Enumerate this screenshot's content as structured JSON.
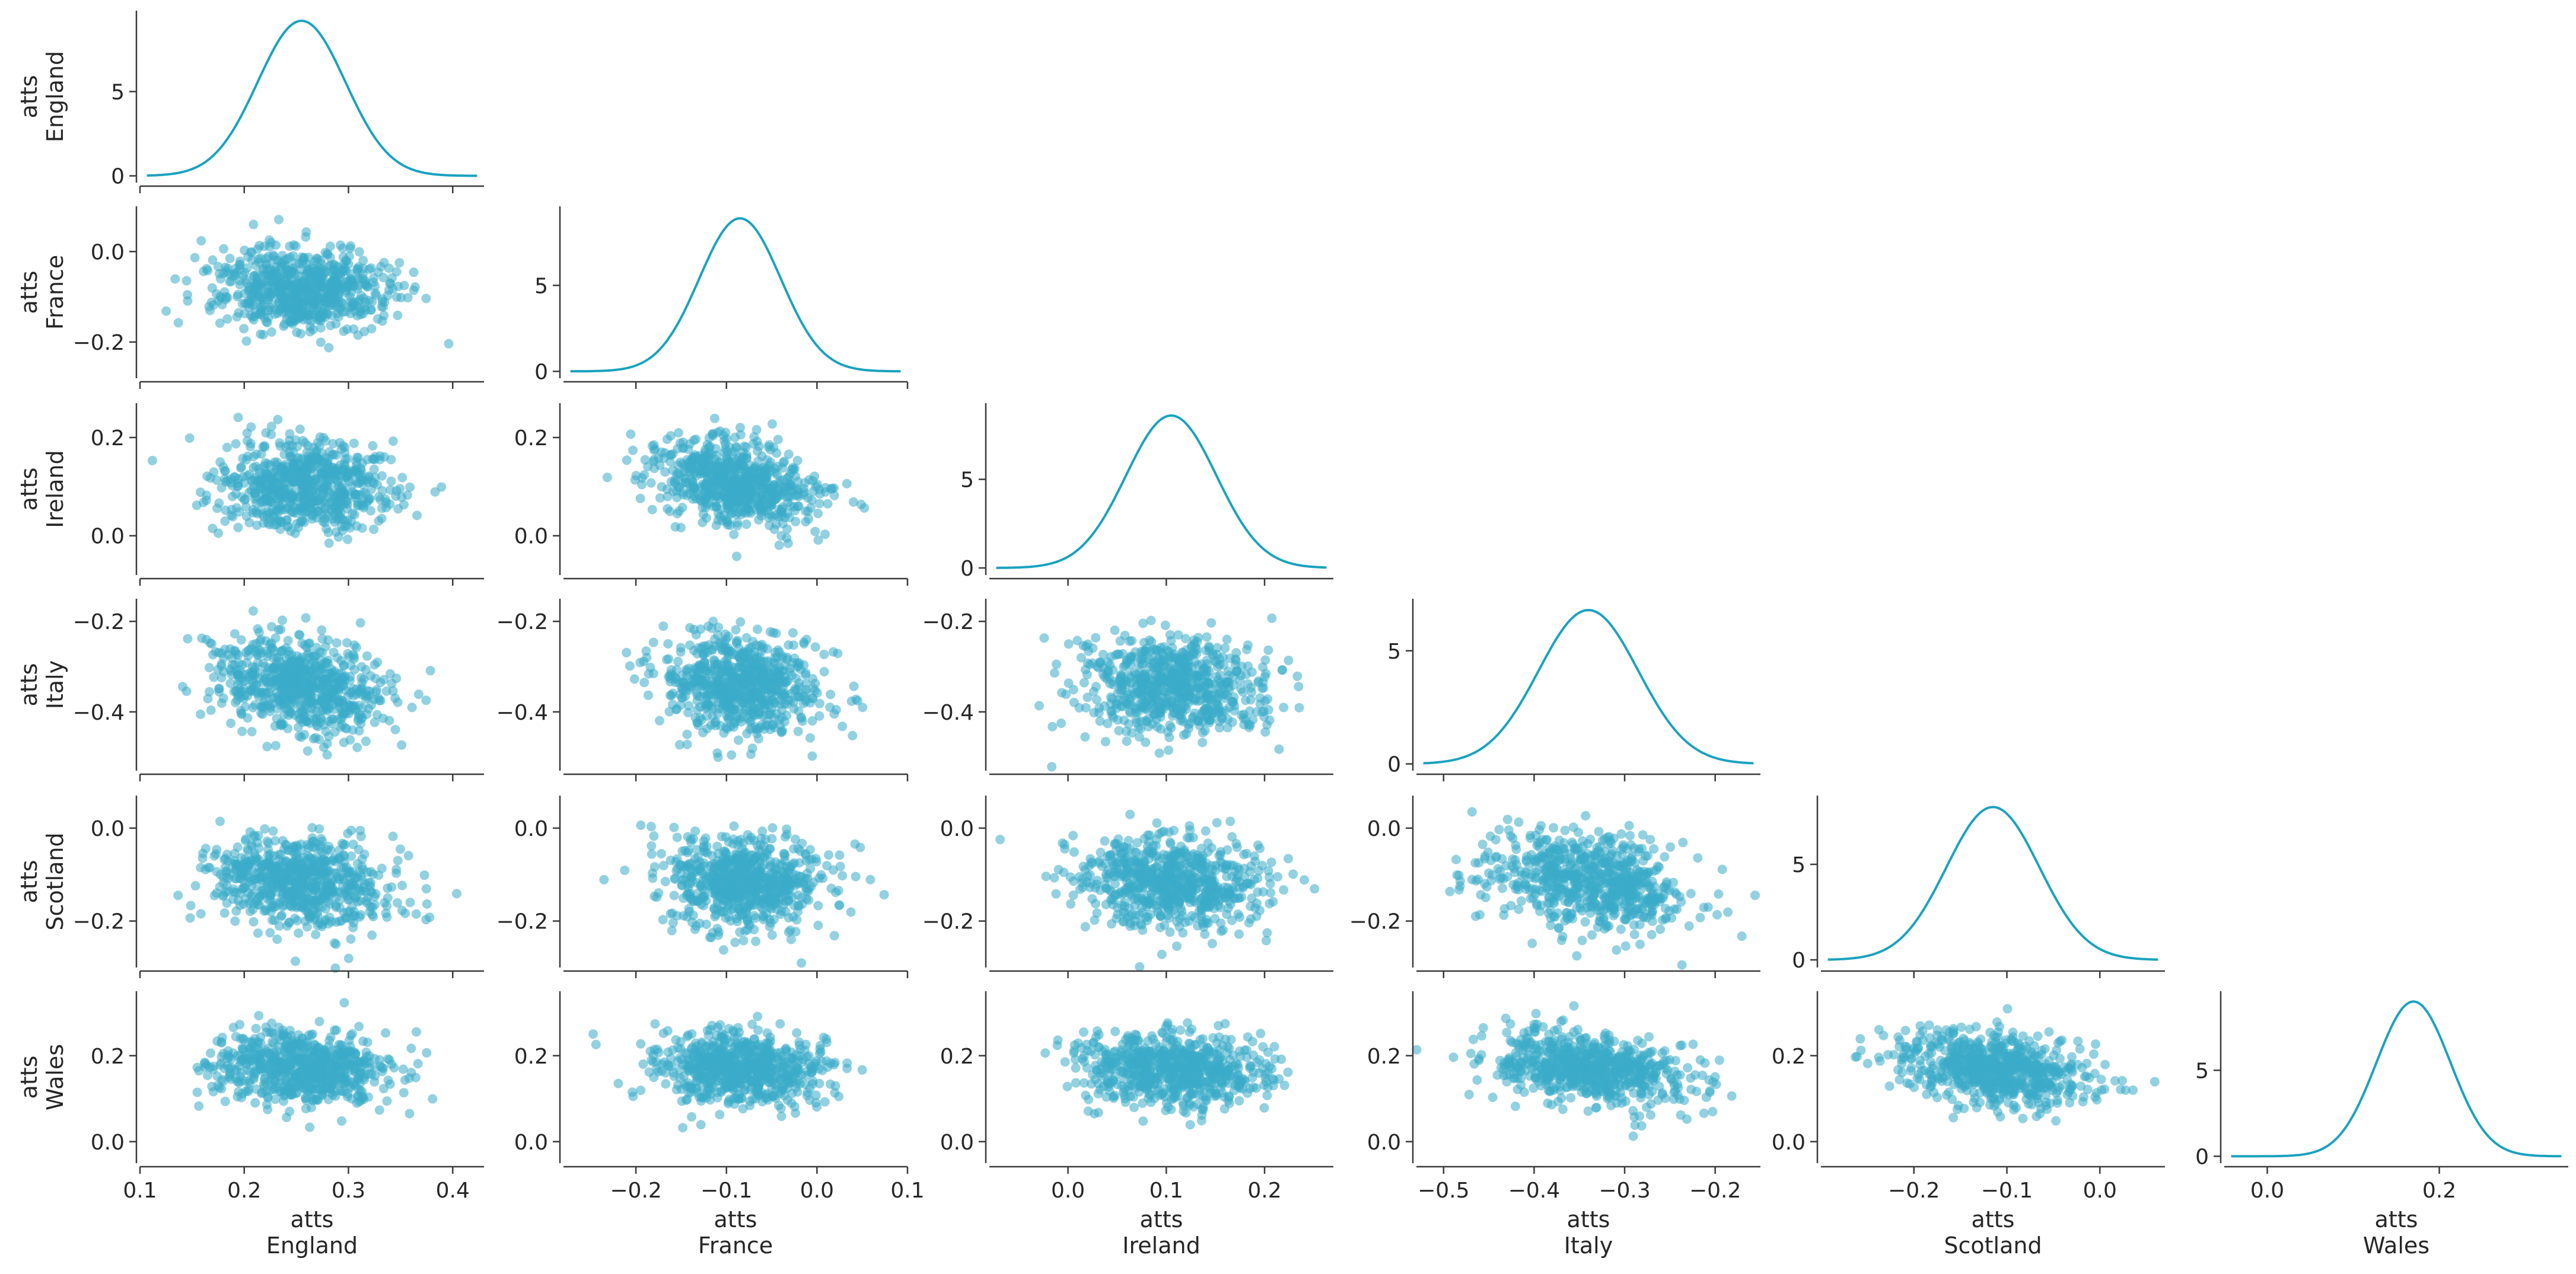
{
  "chart_data": {
    "type": "pair-plot",
    "plot_kind": "scatter-lower, kde-diagonal",
    "marker_color": "#3BACC8",
    "kde_color": "#1AA2BE",
    "grid": false,
    "variables": [
      {
        "id": "England",
        "label_top": "atts",
        "label_bottom": "England",
        "mean": 0.255,
        "sd": 0.042,
        "ticks": [
          0.1,
          0.2,
          0.3,
          0.4
        ],
        "tick_labels": [
          "0.1",
          "0.2",
          "0.3",
          "0.4"
        ],
        "range": [
          0.1,
          0.43
        ],
        "kde_peak": 9.2,
        "kde_ticks": [
          0,
          5
        ],
        "kde_ylim": [
          -0.4,
          9.8
        ]
      },
      {
        "id": "France",
        "label_top": "atts",
        "label_bottom": "France",
        "mean": -0.085,
        "sd": 0.045,
        "ticks": [
          -0.2,
          -0.1,
          0.0,
          0.1
        ],
        "tick_labels": [
          "−0.2",
          "−0.1",
          "0.0",
          "0.1"
        ],
        "range": [
          -0.28,
          0.1
        ],
        "kde_peak": 8.9,
        "kde_ticks": [
          0,
          5
        ],
        "kde_ylim": [
          -0.4,
          9.6
        ]
      },
      {
        "id": "Ireland",
        "label_top": "atts",
        "label_bottom": "Ireland",
        "mean": 0.105,
        "sd": 0.046,
        "ticks": [
          0.0,
          0.1,
          0.2
        ],
        "tick_labels": [
          "0.0",
          "0.1",
          "0.2"
        ],
        "range": [
          -0.08,
          0.27
        ],
        "kde_peak": 8.6,
        "kde_ticks": [
          0,
          5
        ],
        "kde_ylim": [
          -0.4,
          9.3
        ]
      },
      {
        "id": "Italy",
        "label_top": "atts",
        "label_bottom": "Italy",
        "mean": -0.34,
        "sd": 0.055,
        "ticks": [
          -0.5,
          -0.4,
          -0.3,
          -0.2
        ],
        "tick_labels": [
          "−0.5",
          "−0.4",
          "−0.3",
          "−0.2"
        ],
        "range": [
          -0.53,
          -0.15
        ],
        "kde_peak": 6.8,
        "kde_ticks": [
          0,
          5
        ],
        "kde_ylim": [
          -0.3,
          7.3
        ]
      },
      {
        "id": "Scotland",
        "label_top": "atts",
        "label_bottom": "Scotland",
        "mean": -0.115,
        "sd": 0.05,
        "ticks": [
          -0.2,
          -0.1,
          0.0
        ],
        "tick_labels": [
          "−0.2",
          "−0.1",
          "0.0"
        ],
        "range": [
          -0.3,
          0.07
        ],
        "kde_peak": 8.0,
        "kde_ticks": [
          0,
          5
        ],
        "kde_ylim": [
          -0.4,
          8.6
        ]
      },
      {
        "id": "Wales",
        "label_top": "atts",
        "label_bottom": "Wales",
        "mean": 0.17,
        "sd": 0.043,
        "ticks": [
          0.0,
          0.2
        ],
        "tick_labels": [
          "0.0",
          "0.2"
        ],
        "range": [
          -0.05,
          0.35
        ],
        "kde_peak": 9.0,
        "kde_ticks": [
          0,
          5
        ],
        "kde_ylim": [
          -0.4,
          9.6
        ]
      }
    ],
    "scatter_y_ticks": {
      "England": {
        "ticks": [],
        "tick_labels": []
      },
      "France": {
        "ticks": [
          0.0,
          -0.2
        ],
        "tick_labels": [
          "0.0",
          "−0.2"
        ],
        "ylim": [
          -0.28,
          0.1
        ]
      },
      "Ireland": {
        "ticks": [
          0.2,
          0.0
        ],
        "tick_labels": [
          "0.2",
          "0.0"
        ],
        "ylim": [
          -0.08,
          0.27
        ]
      },
      "Italy": {
        "ticks": [
          -0.2,
          -0.4
        ],
        "tick_labels": [
          "−0.2",
          "−0.4"
        ],
        "ylim": [
          -0.53,
          -0.15
        ]
      },
      "Scotland": {
        "ticks": [
          0.0,
          -0.2
        ],
        "tick_labels": [
          "0.0",
          "−0.2"
        ],
        "ylim": [
          -0.3,
          0.07
        ]
      },
      "Wales": {
        "ticks": [
          0.2,
          0.0
        ],
        "tick_labels": [
          "0.2",
          "0.0"
        ],
        "ylim": [
          -0.05,
          0.35
        ]
      }
    },
    "pair_correlations": [
      {
        "row": "France",
        "col": "England",
        "r": -0.05
      },
      {
        "row": "Ireland",
        "col": "England",
        "r": -0.08
      },
      {
        "row": "Ireland",
        "col": "France",
        "r": -0.35
      },
      {
        "row": "Italy",
        "col": "England",
        "r": -0.3
      },
      {
        "row": "Italy",
        "col": "France",
        "r": -0.1
      },
      {
        "row": "Italy",
        "col": "Ireland",
        "r": -0.1
      },
      {
        "row": "Scotland",
        "col": "England",
        "r": -0.15
      },
      {
        "row": "Scotland",
        "col": "France",
        "r": -0.1
      },
      {
        "row": "Scotland",
        "col": "Ireland",
        "r": -0.1
      },
      {
        "row": "Scotland",
        "col": "Italy",
        "r": -0.3
      },
      {
        "row": "Wales",
        "col": "England",
        "r": -0.1
      },
      {
        "row": "Wales",
        "col": "France",
        "r": -0.1
      },
      {
        "row": "Wales",
        "col": "Ireland",
        "r": -0.05
      },
      {
        "row": "Wales",
        "col": "Italy",
        "r": -0.3
      },
      {
        "row": "Wales",
        "col": "Scotland",
        "r": -0.3
      }
    ],
    "sample_count_per_panel": 700
  }
}
